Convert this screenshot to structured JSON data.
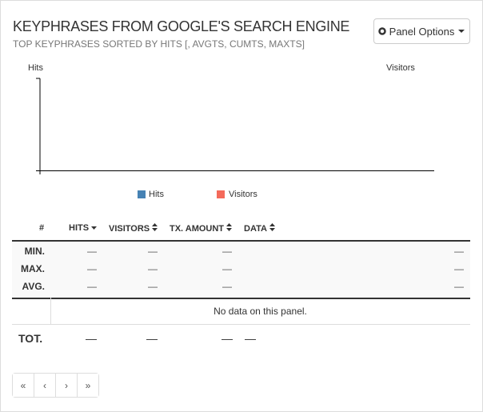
{
  "header": {
    "title": "KEYPHRASES FROM GOOGLE'S SEARCH ENGINE",
    "subtitle": "TOP KEYPHRASES SORTED BY HITS [, AVGTS, CUMTS, MAXTS]",
    "button": "Panel Options"
  },
  "chart": {
    "y_label": "Hits",
    "y2_label": "Visitors",
    "legend": [
      "Hits",
      "Visitors"
    ]
  },
  "table": {
    "columns": [
      "#",
      "HITS",
      "VISITORS",
      "TX. AMOUNT",
      "DATA"
    ],
    "summary": [
      {
        "label": "MIN.",
        "hits": "—",
        "visitors": "—",
        "tx_amount": "—",
        "extra": "—"
      },
      {
        "label": "MAX.",
        "hits": "—",
        "visitors": "—",
        "tx_amount": "—",
        "extra": "—"
      },
      {
        "label": "AVG.",
        "hits": "—",
        "visitors": "—",
        "tx_amount": "—",
        "extra": "—"
      }
    ],
    "empty_message": "No data on this panel.",
    "total": {
      "label": "TOT.",
      "hits": "—",
      "visitors": "—",
      "tx_amount": "—",
      "data": "—"
    }
  },
  "pagination": [
    "«",
    "‹",
    "›",
    "»"
  ]
}
